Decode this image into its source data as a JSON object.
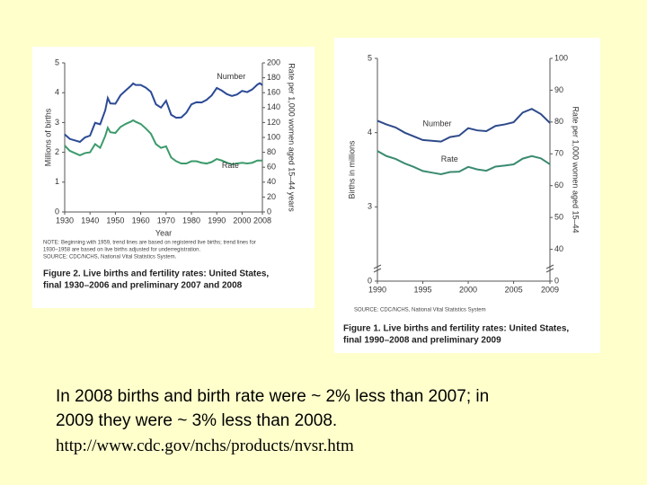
{
  "chart_data": [
    {
      "type": "line",
      "title": [
        "Figure 2. Live births and fertility rates: United States,",
        "final 1930–2006 and preliminary 2007 and 2008"
      ],
      "note": [
        "NOTE: Beginning with 1959, trend lines are based on registered live births; trend lines for",
        "1930–1958 are based on live births adjusted for underregistration.",
        "SOURCE: CDC/NCHS, National Vital Statistics System."
      ],
      "x_label": "Year",
      "y_label": "Millions of births",
      "y2_label": "Rate per 1,000 women aged 15–44 years",
      "x": [
        1930,
        1932,
        1934,
        1936,
        1938,
        1940,
        1942,
        1944,
        1946,
        1947,
        1948,
        1950,
        1952,
        1954,
        1956,
        1957,
        1958,
        1960,
        1962,
        1964,
        1966,
        1968,
        1970,
        1972,
        1974,
        1976,
        1978,
        1980,
        1982,
        1984,
        1986,
        1988,
        1990,
        1992,
        1994,
        1996,
        1998,
        2000,
        2002,
        2004,
        2006,
        2007,
        2008
      ],
      "xlim": [
        1930,
        2008
      ],
      "xticks": [
        1930,
        1940,
        1950,
        1960,
        1970,
        1980,
        1990,
        2000,
        2008
      ],
      "ylim": [
        0,
        5
      ],
      "yticks": [
        0,
        1,
        2,
        3,
        4,
        5
      ],
      "y2lim": [
        0,
        200
      ],
      "y2ticks": [
        0,
        20,
        40,
        60,
        80,
        100,
        120,
        140,
        160,
        180,
        200
      ],
      "axis_break": false,
      "series": [
        {
          "name": "Number",
          "color": "#2b4a96",
          "values": [
            2.6,
            2.45,
            2.4,
            2.35,
            2.5,
            2.56,
            2.99,
            2.94,
            3.41,
            3.82,
            3.64,
            3.63,
            3.91,
            4.07,
            4.22,
            4.31,
            4.26,
            4.26,
            4.17,
            4.03,
            3.61,
            3.5,
            3.73,
            3.26,
            3.16,
            3.17,
            3.33,
            3.61,
            3.68,
            3.67,
            3.76,
            3.91,
            4.16,
            4.07,
            3.95,
            3.89,
            3.94,
            4.06,
            4.02,
            4.11,
            4.27,
            4.32,
            4.25
          ]
        },
        {
          "name": "Rate",
          "color": "#3b9a6b",
          "axis": "y2",
          "values": [
            89,
            82,
            79,
            76,
            79,
            80,
            91,
            86,
            102,
            113,
            107,
            106,
            114,
            118,
            121,
            123,
            121,
            118,
            112,
            105,
            91,
            86,
            88,
            73,
            68,
            65,
            65,
            68,
            68,
            66,
            65,
            67,
            71,
            69,
            66,
            64,
            65,
            66,
            65,
            66,
            69,
            69,
            69
          ]
        }
      ]
    },
    {
      "type": "line",
      "title": [
        "Figure 1. Live births and fertility rates: United States,",
        "final 1990–2008 and preliminary 2009"
      ],
      "note": [
        "SOURCE: CDC/NCHS, National Vital Statistics System"
      ],
      "y_label": "Births in millions",
      "y2_label": "Rate per 1,000 women aged 15–44",
      "x": [
        1990,
        1991,
        1992,
        1993,
        1994,
        1995,
        1996,
        1997,
        1998,
        1999,
        2000,
        2001,
        2002,
        2003,
        2004,
        2005,
        2006,
        2007,
        2008,
        2009
      ],
      "xlim": [
        1990,
        2009
      ],
      "xticks": [
        1990,
        1995,
        2000,
        2005,
        2009
      ],
      "ylim": [
        0,
        5
      ],
      "yticks": [
        0,
        3,
        4,
        5
      ],
      "y2lim": [
        0,
        100
      ],
      "y2ticks": [
        0,
        40,
        50,
        60,
        70,
        80,
        90,
        100
      ],
      "axis_break": true,
      "series": [
        {
          "name": "Number",
          "color": "#2e4a8a",
          "values": [
            4.16,
            4.11,
            4.07,
            4.0,
            3.95,
            3.9,
            3.89,
            3.88,
            3.94,
            3.96,
            4.06,
            4.03,
            4.02,
            4.09,
            4.11,
            4.14,
            4.27,
            4.32,
            4.25,
            4.13
          ]
        },
        {
          "name": "Rate",
          "color": "#3a8a72",
          "axis": "y2",
          "values": [
            70.9,
            69.3,
            68.4,
            67.0,
            65.9,
            64.6,
            64.1,
            63.6,
            64.3,
            64.4,
            65.9,
            65.1,
            64.7,
            66.0,
            66.3,
            66.7,
            68.5,
            69.3,
            68.6,
            66.7
          ]
        }
      ]
    }
  ],
  "caption": {
    "lines": [
      "In 2008 births and birth rate were ~ 2% less than 2007; in",
      "2009 they were ~ 3% less than 2008."
    ],
    "url": "http://www.cdc.gov/nchs/products/nvsr.htm"
  }
}
